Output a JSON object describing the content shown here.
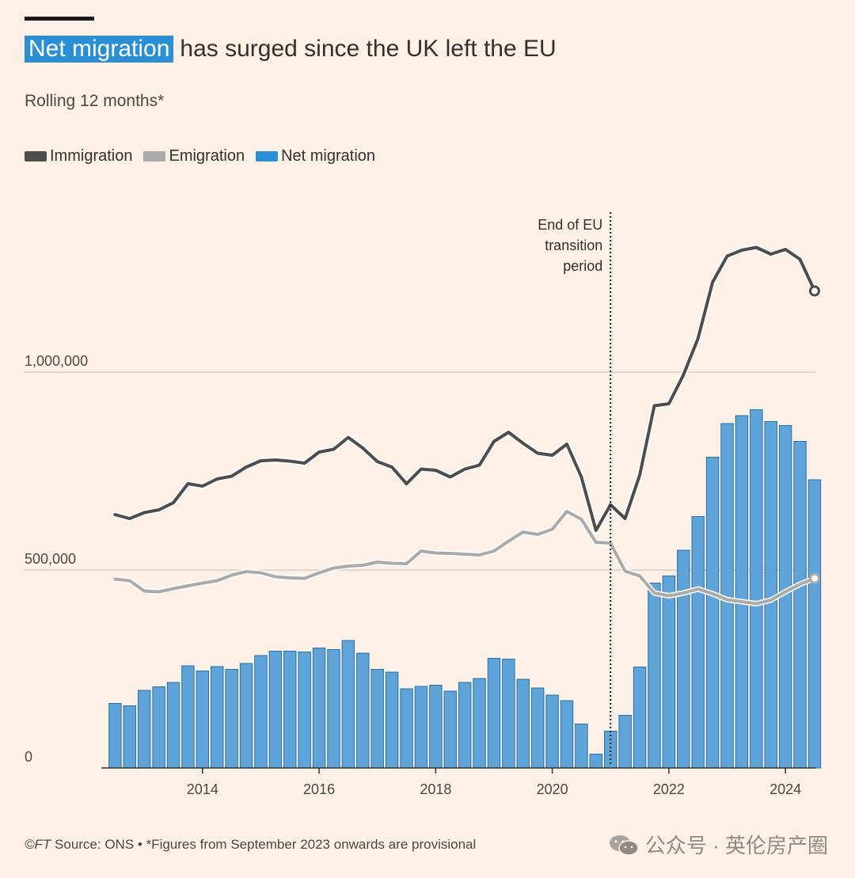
{
  "header": {
    "title_highlight": "Net migration",
    "title_rest": "has surged since the UK left the EU",
    "subtitle": "Rolling 12 months*"
  },
  "legend": [
    {
      "label": "Immigration",
      "color": "#4d4d4d"
    },
    {
      "label": "Emigration",
      "color": "#aaaaaa"
    },
    {
      "label": "Net migration",
      "color": "#2b8fd6"
    }
  ],
  "annotation": {
    "lines": [
      "End of EU",
      "transition",
      "period"
    ],
    "x": 2021.0
  },
  "footer": {
    "ft": "©FT",
    "source": " Source: ONS • *Figures from September 2023 onwards are provisional"
  },
  "watermark": {
    "text": "公众号 · 英伦房产圈",
    "icon": "wechat-icon"
  },
  "colors": {
    "immigration": "#4d4d4d",
    "emigration": "#aaaaaa",
    "net": "#5ea4d8",
    "bar_stroke": "#2a6fa8",
    "grid": "#c9bdb3"
  },
  "chart_data": {
    "type": "bar",
    "xlim": [
      2012.4,
      2024.65
    ],
    "ylim": [
      0,
      1400000
    ],
    "y_ticks": [
      {
        "value": 0,
        "label": "0"
      },
      {
        "value": 500000,
        "label": "500,000"
      },
      {
        "value": 1000000,
        "label": "1,000,000"
      }
    ],
    "x_ticks": [
      {
        "value": 2014,
        "label": "2014"
      },
      {
        "value": 2016,
        "label": "2016"
      },
      {
        "value": 2018,
        "label": "2018"
      },
      {
        "value": 2020,
        "label": "2020"
      },
      {
        "value": 2022,
        "label": "2022"
      },
      {
        "value": 2024,
        "label": "2024"
      }
    ],
    "x": [
      2012.5,
      2012.75,
      2013.0,
      2013.25,
      2013.5,
      2013.75,
      2014.0,
      2014.25,
      2014.5,
      2014.75,
      2015.0,
      2015.25,
      2015.5,
      2015.75,
      2016.0,
      2016.25,
      2016.5,
      2016.75,
      2017.0,
      2017.25,
      2017.5,
      2017.75,
      2018.0,
      2018.25,
      2018.5,
      2018.75,
      2019.0,
      2019.25,
      2019.5,
      2019.75,
      2020.0,
      2020.25,
      2020.5,
      2020.75,
      2021.0,
      2021.25,
      2021.5,
      2021.75,
      2022.0,
      2022.25,
      2022.5,
      2022.75,
      2023.0,
      2023.25,
      2023.5,
      2023.75,
      2024.0,
      2024.25,
      2024.5
    ],
    "series": [
      {
        "name": "Immigration",
        "kind": "line",
        "values": [
          640000,
          630000,
          645000,
          652000,
          670000,
          718000,
          712000,
          730000,
          737000,
          760000,
          776000,
          778000,
          775000,
          770000,
          798000,
          805000,
          835000,
          808000,
          774000,
          760000,
          718000,
          755000,
          752000,
          735000,
          755000,
          765000,
          825000,
          848000,
          820000,
          795000,
          790000,
          818000,
          735000,
          600000,
          665000,
          630000,
          740000,
          915000,
          920000,
          993000,
          1085000,
          1227000,
          1293000,
          1308000,
          1315000,
          1298000,
          1310000,
          1285000,
          1205000
        ]
      },
      {
        "name": "Emigration",
        "kind": "line",
        "values": [
          477000,
          473000,
          447000,
          445000,
          453000,
          460000,
          467000,
          473000,
          487000,
          496000,
          493000,
          483000,
          480000,
          479000,
          493000,
          505000,
          510000,
          512000,
          520000,
          517000,
          516000,
          548000,
          543000,
          542000,
          540000,
          538000,
          548000,
          573000,
          596000,
          590000,
          603000,
          648000,
          628000,
          570000,
          568000,
          497000,
          485000,
          442000,
          435000,
          442000,
          452000,
          440000,
          425000,
          420000,
          415000,
          424000,
          445000,
          464000,
          479000
        ]
      },
      {
        "name": "Net migration",
        "kind": "bar",
        "values": [
          163000,
          157000,
          196000,
          205000,
          216000,
          258000,
          245000,
          256000,
          249000,
          264000,
          284000,
          295000,
          295000,
          293000,
          303000,
          299000,
          322000,
          290000,
          249000,
          242000,
          200000,
          206000,
          209000,
          194000,
          216000,
          226000,
          277000,
          275000,
          224000,
          202000,
          184000,
          170000,
          111000,
          35000,
          93000,
          133000,
          255000,
          467000,
          485000,
          550000,
          635000,
          785000,
          870000,
          890000,
          905000,
          875000,
          865000,
          825000,
          728000
        ]
      }
    ]
  }
}
